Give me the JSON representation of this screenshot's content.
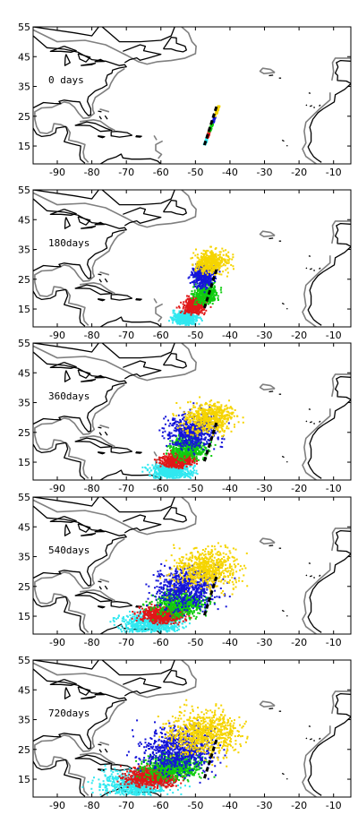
{
  "figure": {
    "lon_range": [
      -97,
      -5
    ],
    "lat_range": [
      9,
      55
    ],
    "x_ticks": [
      -90,
      -80,
      -70,
      -60,
      -50,
      -40,
      -30,
      -20,
      -10
    ],
    "y_ticks": [
      15,
      25,
      35,
      45,
      55
    ],
    "x_tick_labels": [
      "-90",
      "-80",
      "-70",
      "-60",
      "-50",
      "-40",
      "-30",
      "-20",
      "-10"
    ],
    "y_tick_labels": [
      "15",
      "25",
      "35",
      "45",
      "55"
    ],
    "colors": {
      "yellow": "#f5d400",
      "blue": "#1515d8",
      "green": "#10cc10",
      "red": "#e01818",
      "cyan": "#30e8f0",
      "coast": "#000000",
      "contour": "#7f7f7f",
      "release_line": "#000000"
    },
    "panels": [
      {
        "label": "0 days",
        "spread": 0
      },
      {
        "label": "180days",
        "spread": 1
      },
      {
        "label": "360days",
        "spread": 2
      },
      {
        "label": "540days",
        "spread": 3
      },
      {
        "label": "720days",
        "spread": 4
      }
    ]
  }
}
